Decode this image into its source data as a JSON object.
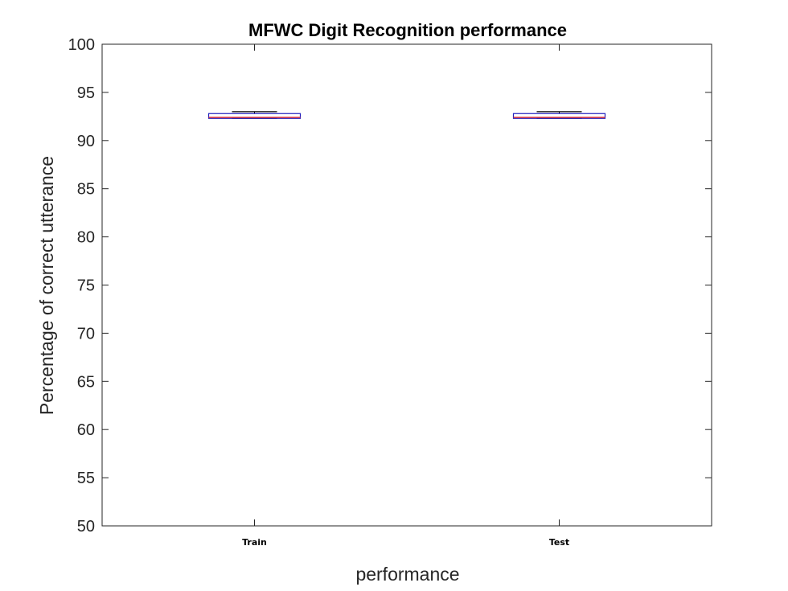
{
  "chart_data": {
    "type": "box",
    "title": "MFWC Digit Recognition  performance",
    "xlabel": "performance",
    "ylabel": "Percentage of correct utterance",
    "ylim": [
      50,
      100
    ],
    "yticks": [
      50,
      55,
      60,
      65,
      70,
      75,
      80,
      85,
      90,
      95,
      100
    ],
    "categories": [
      "Train",
      "Test"
    ],
    "boxes": [
      {
        "category": "Train",
        "min": 92.3,
        "q1": 92.3,
        "median": 92.4,
        "q3": 92.8,
        "max": 93.0
      },
      {
        "category": "Test",
        "min": 92.3,
        "q1": 92.3,
        "median": 92.4,
        "q3": 92.8,
        "max": 93.0
      }
    ],
    "grid": false,
    "legend": "none",
    "colors": {
      "box": "#1f1fbf",
      "median": "#e0303a",
      "whisker": "#000000",
      "axis": "#262626"
    }
  }
}
